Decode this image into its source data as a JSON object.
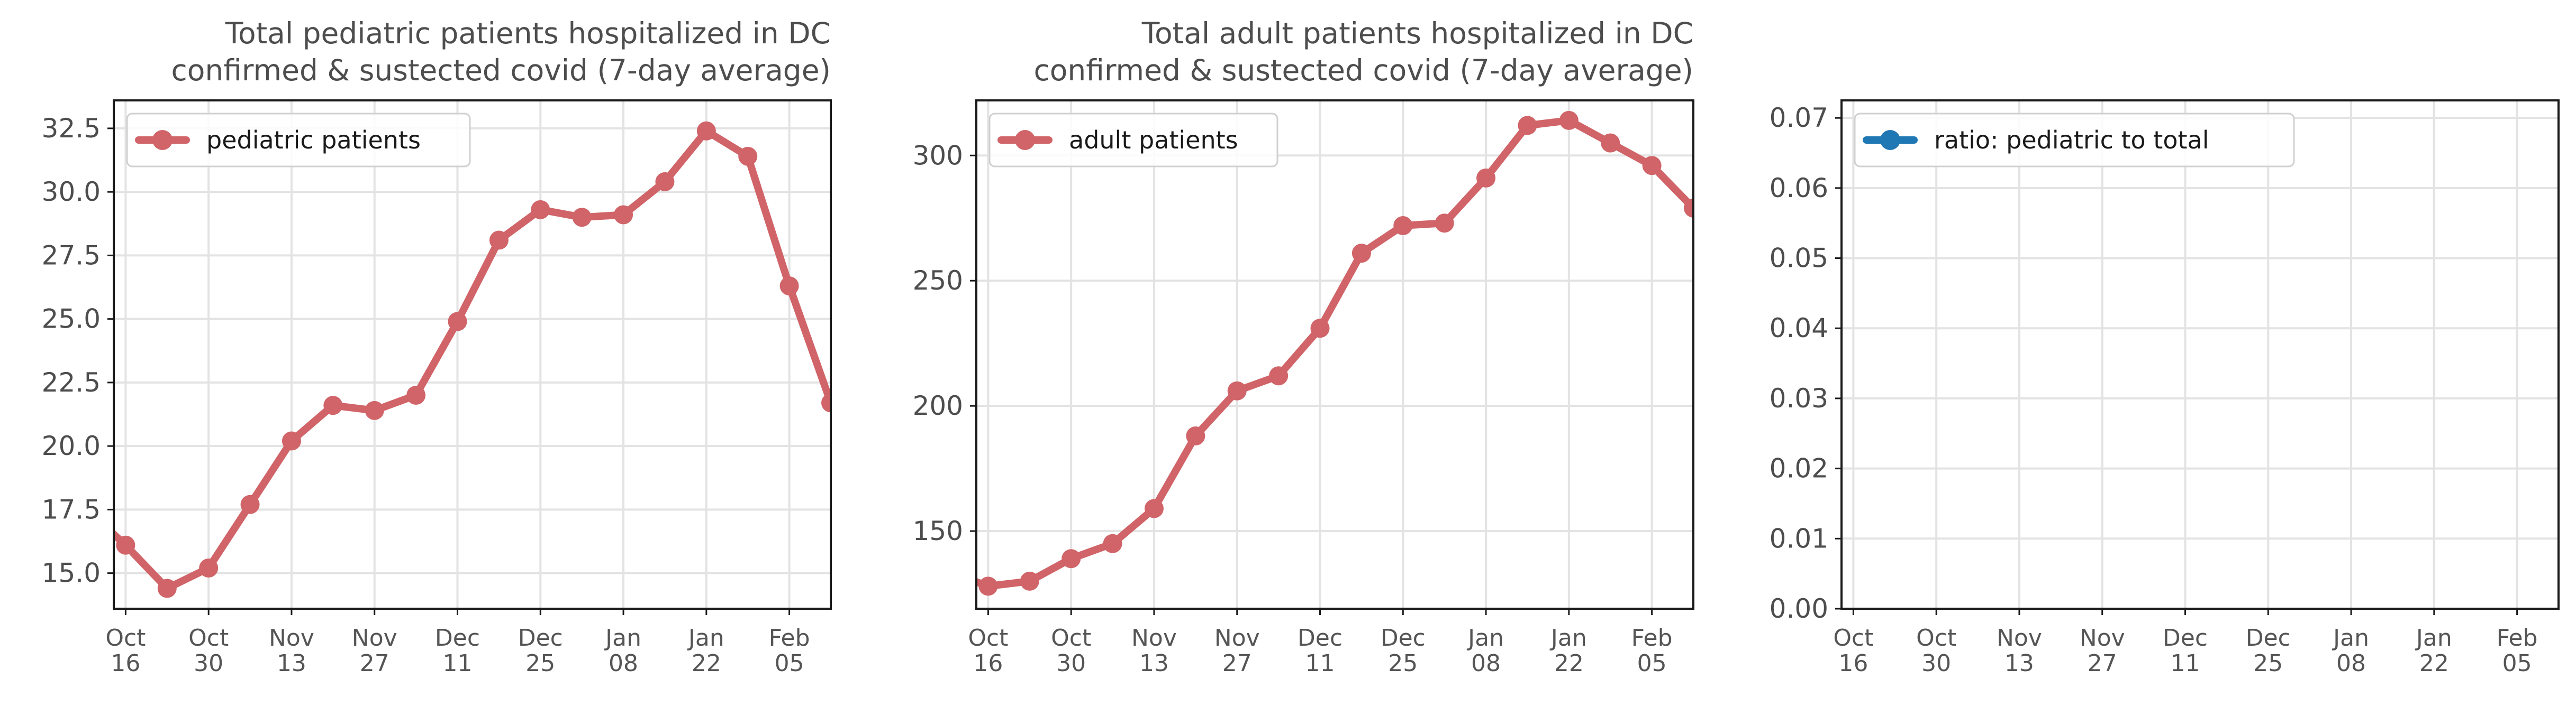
{
  "colors": {
    "pediatric": "#d06468",
    "adult": "#d06468",
    "ratio": "#1f77b4",
    "grid": "#e3e3e3",
    "axis": "#1a1a1a"
  },
  "chart_data": [
    {
      "type": "line",
      "title": [
        "Total pediatric patients hospitalized in DC",
        "confirmed & sustected covid (7-day average)"
      ],
      "xlabel": "",
      "ylabel": "",
      "x_ticks": [
        [
          "Oct",
          "16"
        ],
        [
          "Oct",
          "30"
        ],
        [
          "Nov",
          "13"
        ],
        [
          "Nov",
          "27"
        ],
        [
          "Dec",
          "11"
        ],
        [
          "Dec",
          "25"
        ],
        [
          "Jan",
          "08"
        ],
        [
          "Jan",
          "22"
        ],
        [
          "Feb",
          "05"
        ]
      ],
      "x_tick_dates": [
        "2021-10-16",
        "2021-10-30",
        "2021-11-13",
        "2021-11-27",
        "2021-12-11",
        "2021-12-25",
        "2022-01-08",
        "2022-01-22",
        "2022-02-05"
      ],
      "xlim": [
        "2021-10-14",
        "2022-02-12"
      ],
      "yticks": [
        "15.0",
        "17.5",
        "20.0",
        "22.5",
        "25.0",
        "27.5",
        "30.0",
        "32.5"
      ],
      "ylim": [
        13.6,
        33.6
      ],
      "grid": true,
      "legend_position": "upper-left",
      "series": [
        {
          "name": "pediatric patients",
          "color": "#d06468",
          "x": [
            "2021-10-09",
            "2021-10-16",
            "2021-10-23",
            "2021-10-30",
            "2021-11-06",
            "2021-11-13",
            "2021-11-20",
            "2021-11-27",
            "2021-12-04",
            "2021-12-11",
            "2021-12-18",
            "2021-12-25",
            "2022-01-01",
            "2022-01-08",
            "2022-01-15",
            "2022-01-22",
            "2022-01-29",
            "2022-02-05",
            "2022-02-12"
          ],
          "values": [
            17.6,
            16.1,
            14.4,
            15.2,
            17.7,
            20.2,
            21.6,
            21.4,
            22.0,
            24.9,
            28.1,
            29.3,
            29.0,
            29.1,
            30.4,
            32.4,
            31.4,
            26.3,
            21.7
          ]
        }
      ]
    },
    {
      "type": "line",
      "title": [
        "Total adult patients hospitalized in DC",
        "confirmed & sustected covid (7-day average)"
      ],
      "xlabel": "",
      "ylabel": "",
      "x_ticks": [
        [
          "Oct",
          "16"
        ],
        [
          "Oct",
          "30"
        ],
        [
          "Nov",
          "13"
        ],
        [
          "Nov",
          "27"
        ],
        [
          "Dec",
          "11"
        ],
        [
          "Dec",
          "25"
        ],
        [
          "Jan",
          "08"
        ],
        [
          "Jan",
          "22"
        ],
        [
          "Feb",
          "05"
        ]
      ],
      "x_tick_dates": [
        "2021-10-16",
        "2021-10-30",
        "2021-11-13",
        "2021-11-27",
        "2021-12-11",
        "2021-12-25",
        "2022-01-08",
        "2022-01-22",
        "2022-02-05"
      ],
      "xlim": [
        "2021-10-14",
        "2022-02-12"
      ],
      "yticks": [
        "150",
        "200",
        "250",
        "300"
      ],
      "ylim": [
        119,
        322
      ],
      "grid": true,
      "legend_position": "upper-left",
      "series": [
        {
          "name": "adult patients",
          "color": "#d06468",
          "x": [
            "2021-10-09",
            "2021-10-16",
            "2021-10-23",
            "2021-10-30",
            "2021-11-06",
            "2021-11-13",
            "2021-11-20",
            "2021-11-27",
            "2021-12-04",
            "2021-12-11",
            "2021-12-18",
            "2021-12-25",
            "2022-01-01",
            "2022-01-08",
            "2022-01-15",
            "2022-01-22",
            "2022-01-29",
            "2022-02-05",
            "2022-02-12"
          ],
          "values": [
            134,
            128,
            130,
            139,
            145,
            159,
            188,
            206,
            212,
            231,
            261,
            272,
            273,
            291,
            312,
            314,
            305,
            296,
            279
          ]
        }
      ]
    },
    {
      "type": "line",
      "title": [
        "",
        ""
      ],
      "xlabel": "",
      "ylabel": "",
      "x_ticks": [
        [
          "Oct",
          "16"
        ],
        [
          "Oct",
          "30"
        ],
        [
          "Nov",
          "13"
        ],
        [
          "Nov",
          "27"
        ],
        [
          "Dec",
          "11"
        ],
        [
          "Dec",
          "25"
        ],
        [
          "Jan",
          "08"
        ],
        [
          "Jan",
          "22"
        ],
        [
          "Feb",
          "05"
        ]
      ],
      "x_tick_dates": [
        "2021-10-16",
        "2021-10-30",
        "2021-11-13",
        "2021-11-27",
        "2021-12-11",
        "2021-12-25",
        "2022-01-08",
        "2022-01-22",
        "2022-02-05"
      ],
      "xlim": [
        "2021-10-14",
        "2022-02-12"
      ],
      "yticks": [
        "0.00",
        "0.01",
        "0.02",
        "0.03",
        "0.04",
        "0.05",
        "0.06",
        "0.07"
      ],
      "ylim": [
        0,
        0.0725
      ],
      "grid": true,
      "legend_position": "upper-left",
      "series": [
        {
          "name": "ratio: pediatric to total",
          "color": "#1f77b4",
          "x": [],
          "values": []
        }
      ]
    }
  ]
}
